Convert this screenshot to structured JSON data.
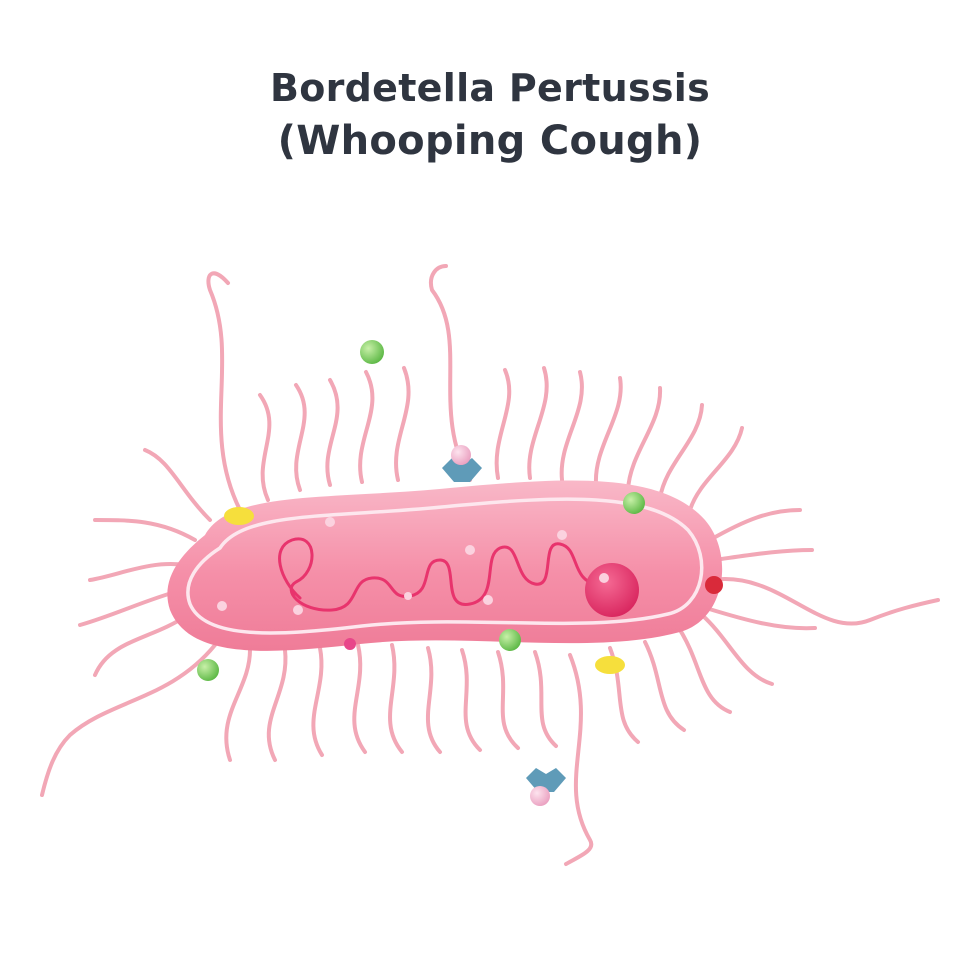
{
  "title": {
    "line1": "Bordetella Pertussis",
    "line2": "(Whooping Cough)"
  },
  "colors": {
    "flagella": "#f2a7b6",
    "body_outer": "#f38aa3",
    "body_inner": "#f7a4b8",
    "membrane": "#fde7ee",
    "dna": "#e8346d",
    "nucleoid": "#e8346d",
    "vesicle_green": "#7ccf5c",
    "vesicle_yellow": "#f6df3c",
    "vesicle_red": "#d92a3a",
    "toxin_blue": "#5f9bb8",
    "toxin_pink": "#f4b6cf"
  }
}
